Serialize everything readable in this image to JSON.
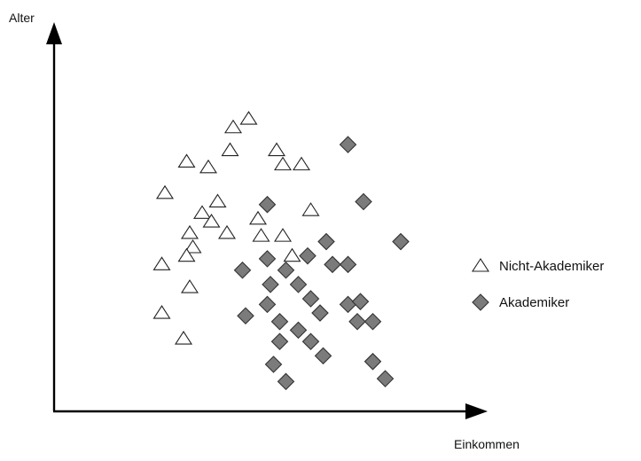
{
  "chart_data": {
    "type": "scatter",
    "xlabel": "Einkommen",
    "ylabel": "Alter",
    "xlim": [
      0,
      100
    ],
    "ylim": [
      0,
      100
    ],
    "grid": false,
    "legend": "right",
    "series": [
      {
        "name": "Nicht-Akademiker",
        "marker": "triangle-open",
        "color": "#ffffff",
        "points": [
          [
            16,
            69
          ],
          [
            23,
            80
          ],
          [
            30,
            78
          ],
          [
            38,
            92
          ],
          [
            43,
            95
          ],
          [
            37,
            84
          ],
          [
            33,
            66
          ],
          [
            28,
            62
          ],
          [
            31,
            59
          ],
          [
            24,
            55
          ],
          [
            25,
            50
          ],
          [
            23,
            47
          ],
          [
            15,
            44
          ],
          [
            24,
            36
          ],
          [
            15,
            27
          ],
          [
            22,
            18
          ],
          [
            52,
            84
          ],
          [
            54,
            79
          ],
          [
            60,
            79
          ],
          [
            63,
            63
          ],
          [
            46,
            60
          ],
          [
            47,
            54
          ],
          [
            54,
            54
          ],
          [
            57,
            47
          ],
          [
            36,
            55
          ]
        ]
      },
      {
        "name": "Akademiker",
        "marker": "diamond",
        "color": "#7b7b7b",
        "points": [
          [
            75,
            86
          ],
          [
            80,
            66
          ],
          [
            92,
            52
          ],
          [
            68,
            52
          ],
          [
            62,
            47
          ],
          [
            49,
            65
          ],
          [
            70,
            44
          ],
          [
            75,
            44
          ],
          [
            49,
            46
          ],
          [
            55,
            42
          ],
          [
            50,
            37
          ],
          [
            59,
            37
          ],
          [
            63,
            32
          ],
          [
            49,
            30
          ],
          [
            53,
            24
          ],
          [
            66,
            27
          ],
          [
            75,
            30
          ],
          [
            79,
            31
          ],
          [
            78,
            24
          ],
          [
            83,
            24
          ],
          [
            41,
            42
          ],
          [
            42,
            26
          ],
          [
            59,
            21
          ],
          [
            53,
            17
          ],
          [
            63,
            17
          ],
          [
            51,
            9
          ],
          [
            55,
            3
          ],
          [
            67,
            12
          ],
          [
            83,
            10
          ],
          [
            87,
            4
          ]
        ]
      }
    ]
  },
  "legend": {
    "items": [
      {
        "label": "Nicht-Akademiker"
      },
      {
        "label": "Akademiker"
      }
    ]
  }
}
